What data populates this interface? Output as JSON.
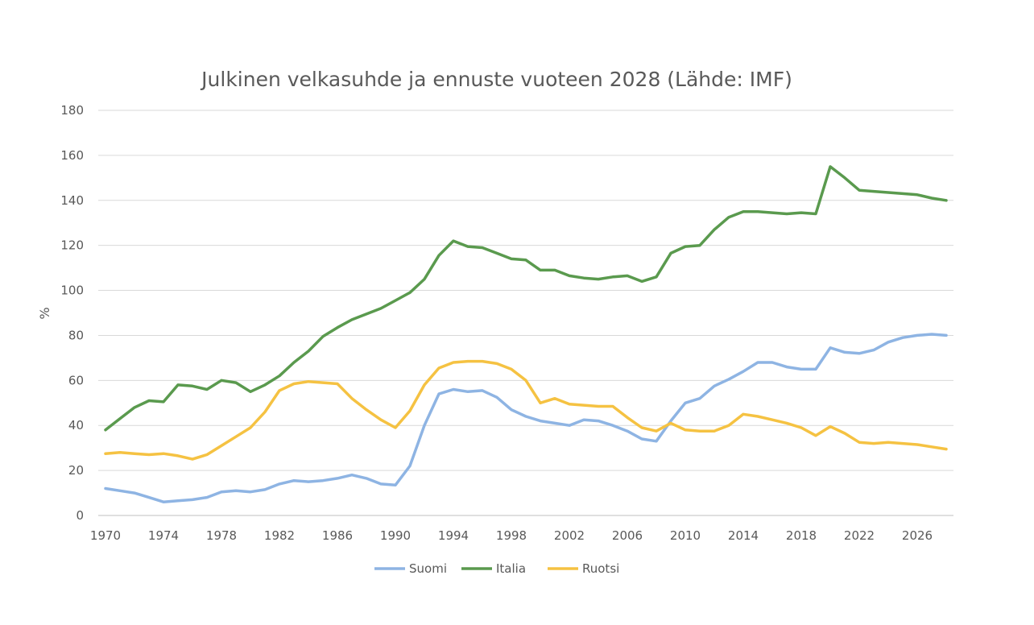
{
  "chart_data": {
    "type": "line",
    "title": "Julkinen velkasuhde ja ennuste vuoteen 2028 (Lähde: IMF)",
    "ylabel": "%",
    "xlabel": "",
    "xlim": [
      1970,
      2028
    ],
    "ylim": [
      0,
      180
    ],
    "y_ticks": [
      0,
      20,
      40,
      60,
      80,
      100,
      120,
      140,
      160,
      180
    ],
    "x_ticks": [
      1970,
      1974,
      1978,
      1982,
      1986,
      1990,
      1994,
      1998,
      2002,
      2006,
      2010,
      2014,
      2018,
      2022,
      2026
    ],
    "grid": "horizontal",
    "legend_position": "bottom",
    "x": [
      1970,
      1971,
      1972,
      1973,
      1974,
      1975,
      1976,
      1977,
      1978,
      1979,
      1980,
      1981,
      1982,
      1983,
      1984,
      1985,
      1986,
      1987,
      1988,
      1989,
      1990,
      1991,
      1992,
      1993,
      1994,
      1995,
      1996,
      1997,
      1998,
      1999,
      2000,
      2001,
      2002,
      2003,
      2004,
      2005,
      2006,
      2007,
      2008,
      2009,
      2010,
      2011,
      2012,
      2013,
      2014,
      2015,
      2016,
      2017,
      2018,
      2019,
      2020,
      2021,
      2022,
      2023,
      2024,
      2025,
      2026,
      2027,
      2028
    ],
    "series": [
      {
        "name": "Suomi",
        "color": "#8eb4e3",
        "values": [
          12,
          11,
          10,
          8,
          6,
          6.5,
          7,
          8,
          10.5,
          11,
          10.5,
          11.5,
          14,
          15.5,
          15,
          15.5,
          16.5,
          18,
          16.5,
          14,
          13.5,
          22,
          40,
          54,
          56,
          55,
          55.5,
          52.5,
          47,
          44,
          42,
          41,
          40,
          42.5,
          42,
          40,
          37.5,
          34,
          33,
          42,
          50,
          52,
          57.5,
          60.5,
          64,
          68,
          68,
          66,
          65,
          65,
          74.5,
          72.5,
          72,
          73.5,
          77,
          79,
          80,
          80.5,
          80
        ]
      },
      {
        "name": "Italia",
        "color": "#5a9a4e",
        "values": [
          38,
          43,
          48,
          51,
          50.5,
          58,
          57.5,
          56,
          60,
          59,
          55,
          58,
          62,
          68,
          73,
          79.5,
          83.5,
          87,
          89.5,
          92,
          95.5,
          99,
          105,
          115.5,
          122,
          119.5,
          119,
          116.5,
          114,
          113.5,
          109,
          109,
          106.5,
          105.5,
          105,
          106,
          106.5,
          104,
          106,
          116.5,
          119.5,
          120,
          127,
          132.5,
          135,
          135,
          134.5,
          134,
          134.5,
          134,
          155,
          150,
          144.5,
          144,
          143.5,
          143,
          142.5,
          141,
          140
        ]
      },
      {
        "name": "Ruotsi",
        "color": "#f5c242",
        "values": [
          27.5,
          28,
          27.5,
          27,
          27.5,
          26.5,
          25,
          27,
          31,
          35,
          39,
          46,
          55.5,
          58.5,
          59.5,
          59,
          58.5,
          52,
          47,
          42.5,
          39,
          46.5,
          58,
          65.5,
          68,
          68.5,
          68.5,
          67.5,
          65,
          60,
          50,
          52,
          49.5,
          49,
          48.5,
          48.5,
          43.5,
          39,
          37.5,
          41,
          38,
          37.5,
          37.5,
          40,
          45,
          44,
          42.5,
          41,
          39,
          35.5,
          39.5,
          36.5,
          32.5,
          32,
          32.5,
          32,
          31.5,
          30.5,
          29.5
        ]
      }
    ]
  }
}
